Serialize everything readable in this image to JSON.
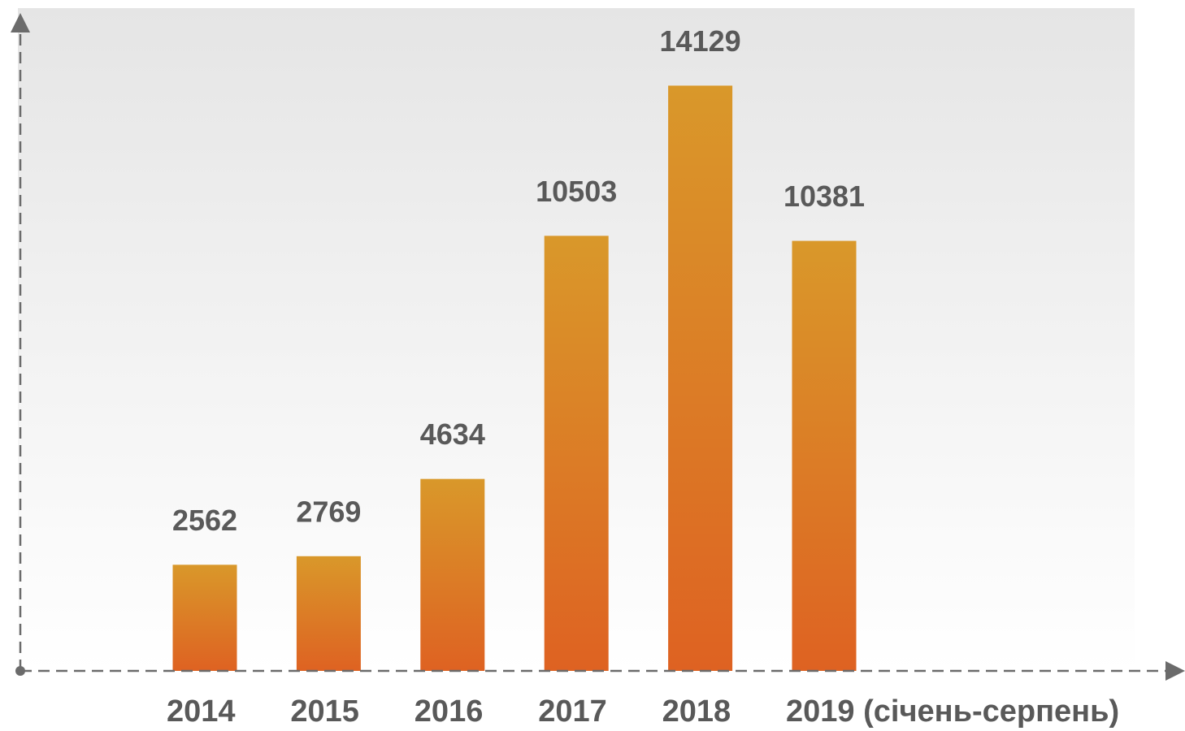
{
  "chart_data": {
    "type": "bar",
    "categories": [
      "2014",
      "2015",
      "2016",
      "2017",
      "2018",
      "2019 (січень-серпень)"
    ],
    "values": [
      2562,
      2769,
      4634,
      10503,
      14129,
      10381
    ],
    "gradient": [
      "#d9982a",
      "#de6222"
    ],
    "ylim": [
      0,
      16000
    ]
  }
}
